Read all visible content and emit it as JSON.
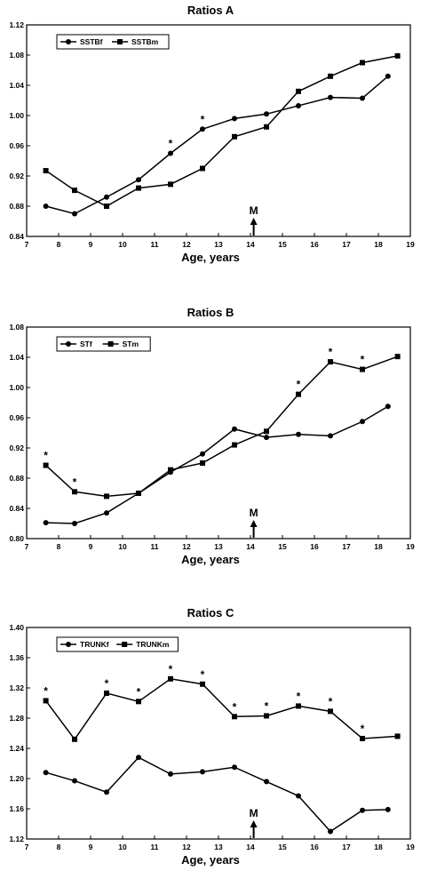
{
  "chart_data": [
    {
      "type": "line",
      "title": "Ratios A",
      "xlabel": "Age, years",
      "ylabel": "",
      "xlim": [
        7,
        19
      ],
      "ylim": [
        0.84,
        1.12
      ],
      "xticks": [
        "7",
        "8",
        "9",
        "10",
        "11",
        "12",
        "13",
        "14",
        "15",
        "16",
        "17",
        "18",
        "19"
      ],
      "yticks": [
        "0.84",
        "0.88",
        "0.92",
        "0.96",
        "1.00",
        "1.04",
        "1.08",
        "1.12"
      ],
      "legend_position": "top-left",
      "grid": false,
      "annotation": {
        "label": "M",
        "x": 14.1
      },
      "series": [
        {
          "name": "SSTBf",
          "marker": "circle",
          "x": [
            7.6,
            8.5,
            9.5,
            10.5,
            11.5,
            12.5,
            13.5,
            14.5,
            15.5,
            16.5,
            17.5,
            18.3
          ],
          "y": [
            0.88,
            0.87,
            0.892,
            0.915,
            0.95,
            0.982,
            0.996,
            1.002,
            1.013,
            1.024,
            1.023,
            1.052
          ],
          "significant": []
        },
        {
          "name": "SSTBm",
          "marker": "square",
          "x": [
            7.6,
            8.5,
            9.5,
            10.5,
            11.5,
            12.5,
            13.5,
            14.5,
            15.5,
            16.5,
            17.5,
            18.6
          ],
          "y": [
            0.927,
            0.901,
            0.88,
            0.904,
            0.909,
            0.93,
            0.972,
            0.985,
            1.032,
            1.052,
            1.07,
            1.079
          ],
          "significant": []
        }
      ],
      "asterisks_x": [
        11.5,
        12.5
      ]
    },
    {
      "type": "line",
      "title": "Ratios B",
      "xlabel": "Age, years",
      "ylabel": "",
      "xlim": [
        7,
        19
      ],
      "ylim": [
        0.8,
        1.08
      ],
      "xticks": [
        "7",
        "8",
        "9",
        "10",
        "11",
        "12",
        "13",
        "14",
        "15",
        "16",
        "17",
        "18",
        "19"
      ],
      "yticks": [
        "0.80",
        "0.84",
        "0.88",
        "0.92",
        "0.96",
        "1.00",
        "1.04",
        "1.08"
      ],
      "legend_position": "top-left",
      "grid": false,
      "annotation": {
        "label": "M",
        "x": 14.1
      },
      "series": [
        {
          "name": "STf",
          "marker": "circle",
          "x": [
            7.6,
            8.5,
            9.5,
            10.5,
            11.5,
            12.5,
            13.5,
            14.5,
            15.5,
            16.5,
            17.5,
            18.3
          ],
          "y": [
            0.821,
            0.82,
            0.834,
            0.86,
            0.888,
            0.912,
            0.945,
            0.934,
            0.938,
            0.936,
            0.955,
            0.975
          ],
          "significant": []
        },
        {
          "name": "STm",
          "marker": "square",
          "x": [
            7.6,
            8.5,
            9.5,
            10.5,
            11.5,
            12.5,
            13.5,
            14.5,
            15.5,
            16.5,
            17.5,
            18.6
          ],
          "y": [
            0.897,
            0.862,
            0.856,
            0.86,
            0.891,
            0.9,
            0.924,
            0.942,
            0.991,
            1.034,
            1.024,
            1.041
          ],
          "significant": []
        }
      ],
      "asterisks_x": [
        7.6,
        8.5,
        15.5,
        16.5,
        17.5
      ]
    },
    {
      "type": "line",
      "title": "Ratios C",
      "xlabel": "Age, years",
      "ylabel": "",
      "xlim": [
        7,
        19
      ],
      "ylim": [
        1.12,
        1.4
      ],
      "xticks": [
        "7",
        "8",
        "9",
        "10",
        "11",
        "12",
        "13",
        "14",
        "15",
        "16",
        "17",
        "18",
        "19"
      ],
      "yticks": [
        "1.12",
        "1.16",
        "1.20",
        "1.24",
        "1.28",
        "1.32",
        "1.36",
        "1.40"
      ],
      "legend_position": "top-left",
      "grid": false,
      "annotation": {
        "label": "M",
        "x": 14.1
      },
      "series": [
        {
          "name": "TRUNKf",
          "marker": "circle",
          "x": [
            7.6,
            8.5,
            9.5,
            10.5,
            11.5,
            12.5,
            13.5,
            14.5,
            15.5,
            16.5,
            17.5,
            18.3
          ],
          "y": [
            1.208,
            1.197,
            1.182,
            1.228,
            1.206,
            1.209,
            1.215,
            1.196,
            1.177,
            1.13,
            1.158,
            1.159
          ]
        },
        {
          "name": "TRUNKm",
          "marker": "square",
          "x": [
            7.6,
            8.5,
            9.5,
            10.5,
            11.5,
            12.5,
            13.5,
            14.5,
            15.5,
            16.5,
            17.5,
            18.6
          ],
          "y": [
            1.303,
            1.252,
            1.313,
            1.302,
            1.332,
            1.325,
            1.282,
            1.283,
            1.296,
            1.289,
            1.253,
            1.256
          ]
        }
      ],
      "asterisks_x": [
        7.6,
        9.5,
        10.5,
        11.5,
        12.5,
        13.5,
        14.5,
        15.5,
        16.5,
        17.5
      ]
    }
  ],
  "panels": [
    {
      "title": "Ratios A",
      "xlabel": "Age, years",
      "legend": [
        "SSTBf",
        "SSTBm"
      ],
      "marker_label": "M"
    },
    {
      "title": "Ratios B",
      "xlabel": "Age, years",
      "legend": [
        "STf",
        "STm"
      ],
      "marker_label": "M"
    },
    {
      "title": "Ratios C",
      "xlabel": "Age, years",
      "legend": [
        "TRUNKf",
        "TRUNKm"
      ],
      "marker_label": "M"
    }
  ],
  "colors": {
    "line": "#000000",
    "background": "#ffffff"
  }
}
